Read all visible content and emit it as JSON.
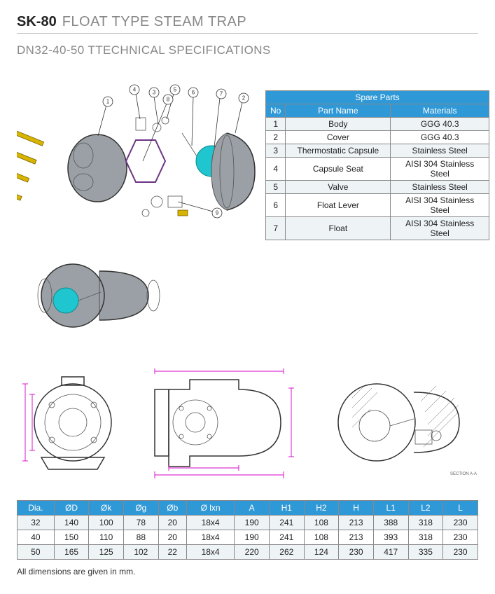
{
  "header": {
    "model": "SK-80",
    "title": "FLOAT TYPE STEAM TRAP"
  },
  "subheader": "DN32-40-50 TTECHNICAL SPECIFICATIONS",
  "balloons": [
    "1",
    "2",
    "3",
    "4",
    "5",
    "6",
    "7",
    "8",
    "9"
  ],
  "spare_parts": {
    "title": "Spare Parts",
    "columns": [
      "No",
      "Part Name",
      "Materials"
    ],
    "rows": [
      [
        "1",
        "Body",
        "GGG 40.3"
      ],
      [
        "2",
        "Cover",
        "GGG 40.3"
      ],
      [
        "3",
        "Thermostatic Capsule",
        "Stainless Steel"
      ],
      [
        "4",
        "Capsule Seat",
        "AISI 304 Stainless Steel"
      ],
      [
        "5",
        "Valve",
        "Stainless Steel"
      ],
      [
        "6",
        "Float Lever",
        "AISI 304 Stainless Steel"
      ],
      [
        "7",
        "Float",
        "AISI 304 Stainless Steel"
      ]
    ]
  },
  "dimensions": {
    "columns": [
      "Dia.",
      "ØD",
      "Øk",
      "Øg",
      "Øb",
      "Ø lxn",
      "A",
      "H1",
      "H2",
      "H",
      "L1",
      "L2",
      "L"
    ],
    "rows": [
      [
        "32",
        "140",
        "100",
        "78",
        "20",
        "18x4",
        "190",
        "241",
        "108",
        "213",
        "388",
        "318",
        "230"
      ],
      [
        "40",
        "150",
        "110",
        "88",
        "20",
        "18x4",
        "190",
        "241",
        "108",
        "213",
        "393",
        "318",
        "230"
      ],
      [
        "50",
        "165",
        "125",
        "102",
        "22",
        "18x4",
        "220",
        "262",
        "124",
        "230",
        "417",
        "335",
        "230"
      ]
    ]
  },
  "footnote": "All dimensions are given in mm.",
  "colors": {
    "accent": "#2f98d6",
    "magenta": "#d400c8",
    "violet": "#7a1fa2",
    "teal": "#1fc6cf",
    "brass": "#d6b400",
    "grey": "#9aa0a5"
  }
}
